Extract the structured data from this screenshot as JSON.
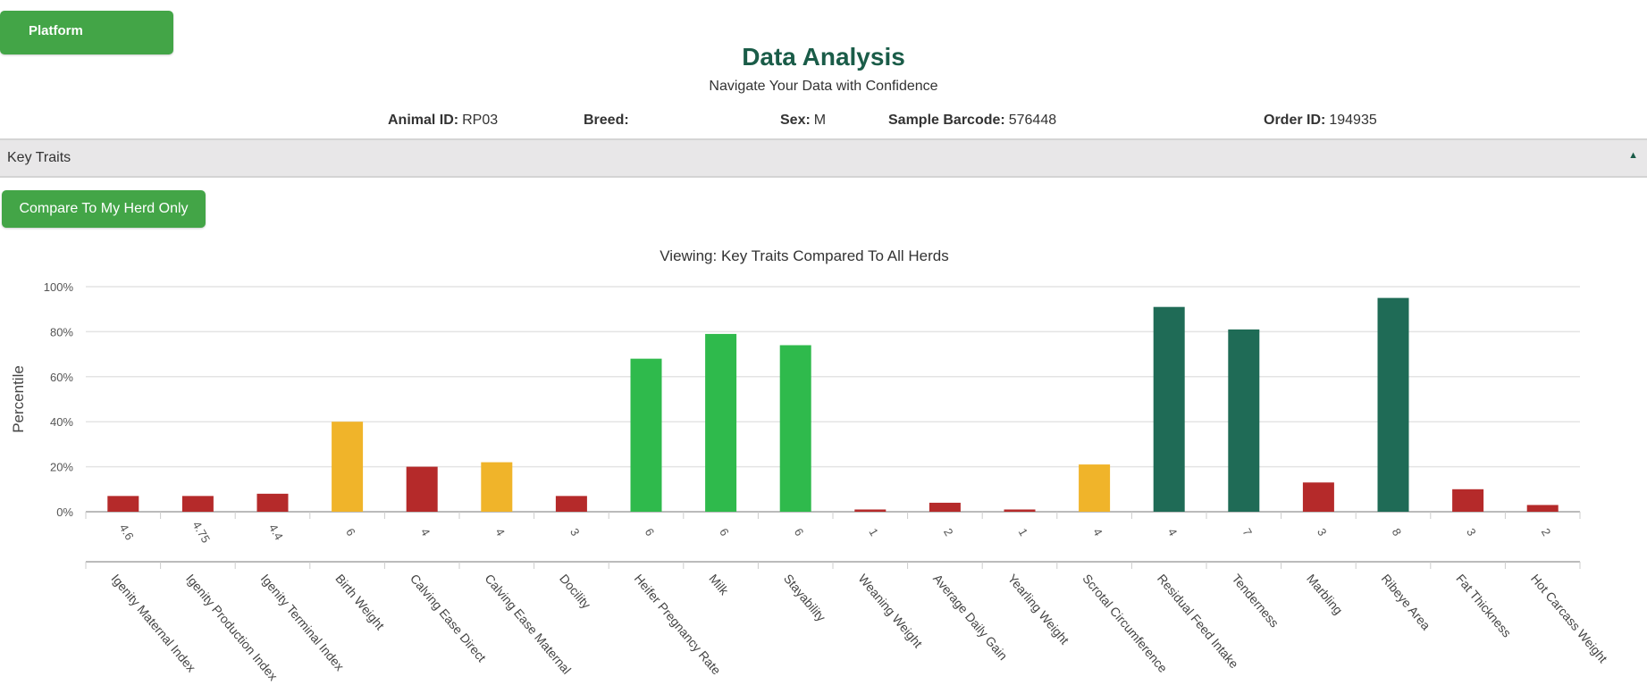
{
  "header": {
    "platform_label": "Platform",
    "title": "Data Analysis",
    "subtitle": "Navigate Your Data with Confidence"
  },
  "info": {
    "animal_id_label": "Animal ID:",
    "animal_id": "RP03",
    "breed_label": "Breed:",
    "breed": "",
    "sex_label": "Sex:",
    "sex": "M",
    "barcode_label": "Sample Barcode:",
    "barcode": "576448",
    "order_label": "Order ID:",
    "order_id": "194935"
  },
  "section": {
    "label": "Key Traits",
    "toggle_icon": "caret-up-icon",
    "toggle_glyph": "▲"
  },
  "compare_button": "Compare To My Herd Only",
  "colors": {
    "red": "#b52a2a",
    "yellow": "#f0b42a",
    "green": "#2fba4c",
    "teal": "#1f6b56",
    "brand": "#43a547"
  },
  "chart_data": {
    "type": "bar",
    "title": "Viewing: Key Traits Compared To All Herds",
    "ylabel": "Percentile",
    "xlabel": "",
    "ylim": [
      0,
      100
    ],
    "yticks": [
      "0%",
      "20%",
      "40%",
      "60%",
      "80%",
      "100%"
    ],
    "grid": true,
    "categories": [
      "Igenity Maternal Index",
      "Igenity Production Index",
      "Igenity Terminal Index",
      "Birth Weight",
      "Calving Ease Direct",
      "Calving Ease Maternal",
      "Docility",
      "Heifer Pregnancy Rate",
      "Milk",
      "Stayability",
      "Weaning Weight",
      "Average Daily Gain",
      "Yearling Weight",
      "Scrotal Circumference",
      "Residual Feed Intake",
      "Tenderness",
      "Marbling",
      "Ribeye Area",
      "Fat Thickness",
      "Hot Carcass Weight"
    ],
    "scores": [
      "4.6",
      "4.75",
      "4.4",
      "6",
      "4",
      "4",
      "3",
      "6",
      "6",
      "6",
      "1",
      "2",
      "1",
      "4",
      "4",
      "7",
      "3",
      "8",
      "3",
      "2"
    ],
    "values": [
      7,
      7,
      8,
      40,
      20,
      22,
      7,
      68,
      79,
      74,
      1,
      4,
      1,
      21,
      91,
      81,
      13,
      95,
      10,
      3
    ],
    "bar_colors": [
      "red",
      "red",
      "red",
      "yellow",
      "red",
      "yellow",
      "red",
      "green",
      "green",
      "green",
      "red",
      "red",
      "red",
      "yellow",
      "teal",
      "teal",
      "red",
      "teal",
      "red",
      "red"
    ]
  }
}
